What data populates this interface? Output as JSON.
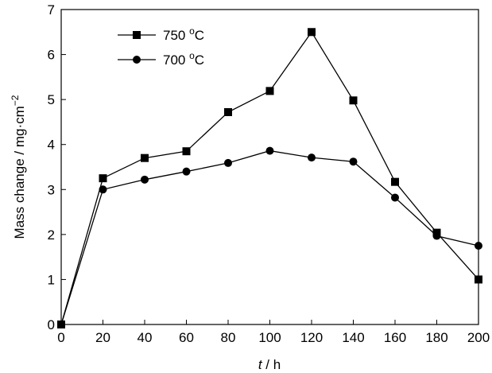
{
  "chart_data": {
    "type": "line",
    "title": "",
    "xlabel_italic": "t",
    "xlabel_rest": " / h",
    "ylabel_main": "Mass change / mg·cm",
    "ylabel_exp": "−2",
    "xlim": [
      0,
      200
    ],
    "ylim": [
      0,
      7
    ],
    "xticks": [
      0,
      20,
      40,
      60,
      80,
      100,
      120,
      140,
      160,
      180,
      200
    ],
    "yticks": [
      0,
      1,
      2,
      3,
      4,
      5,
      6,
      7
    ],
    "grid": false,
    "legend_position": "top-left",
    "series": [
      {
        "name": "750 °C",
        "label_value": "750 ",
        "label_degree": "o",
        "label_unit": "C",
        "marker": "square",
        "color": "#000000",
        "x": [
          0,
          20,
          40,
          60,
          80,
          100,
          120,
          140,
          160,
          180,
          200
        ],
        "y": [
          0,
          3.25,
          3.7,
          3.85,
          4.72,
          5.19,
          6.5,
          4.98,
          3.17,
          2.04,
          1.0
        ]
      },
      {
        "name": "700 °C",
        "label_value": "700 ",
        "label_degree": "o",
        "label_unit": "C",
        "marker": "circle",
        "color": "#000000",
        "x": [
          0,
          20,
          40,
          60,
          80,
          100,
          120,
          140,
          160,
          180,
          200
        ],
        "y": [
          0,
          3.0,
          3.22,
          3.4,
          3.59,
          3.86,
          3.71,
          3.62,
          2.82,
          1.97,
          1.75
        ]
      }
    ]
  }
}
